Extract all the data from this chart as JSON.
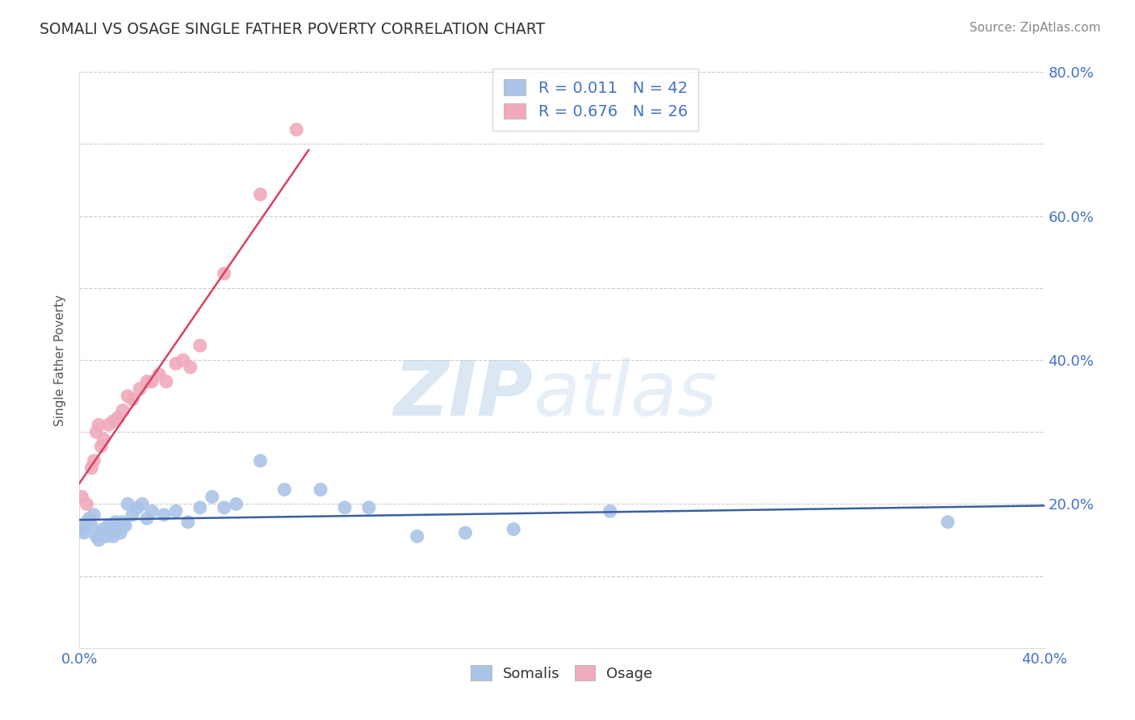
{
  "title": "SOMALI VS OSAGE SINGLE FATHER POVERTY CORRELATION CHART",
  "source_text": "Source: ZipAtlas.com",
  "ylabel": "Single Father Poverty",
  "watermark_zip": "ZIP",
  "watermark_atlas": "atlas",
  "xlim": [
    0.0,
    0.4
  ],
  "ylim": [
    0.0,
    0.8
  ],
  "somalis_color": "#aac4e8",
  "osage_color": "#f0aabb",
  "somalis_line_color": "#3a5fa0",
  "osage_line_color": "#d94060",
  "somalis_R": 0.011,
  "somalis_N": 42,
  "osage_R": 0.676,
  "osage_N": 26,
  "somalis_x": [
    0.001,
    0.002,
    0.003,
    0.004,
    0.005,
    0.006,
    0.007,
    0.008,
    0.009,
    0.01,
    0.011,
    0.012,
    0.013,
    0.014,
    0.015,
    0.016,
    0.017,
    0.018,
    0.019,
    0.02,
    0.022,
    0.024,
    0.026,
    0.028,
    0.03,
    0.035,
    0.04,
    0.045,
    0.05,
    0.055,
    0.06,
    0.065,
    0.075,
    0.085,
    0.1,
    0.11,
    0.12,
    0.14,
    0.16,
    0.18,
    0.22,
    0.36
  ],
  "somalis_y": [
    0.165,
    0.16,
    0.175,
    0.18,
    0.17,
    0.185,
    0.155,
    0.15,
    0.16,
    0.165,
    0.155,
    0.17,
    0.16,
    0.155,
    0.175,
    0.165,
    0.16,
    0.175,
    0.17,
    0.2,
    0.185,
    0.195,
    0.2,
    0.18,
    0.19,
    0.185,
    0.19,
    0.175,
    0.195,
    0.21,
    0.195,
    0.2,
    0.26,
    0.22,
    0.22,
    0.195,
    0.195,
    0.155,
    0.16,
    0.165,
    0.19,
    0.175
  ],
  "osage_x": [
    0.001,
    0.003,
    0.005,
    0.006,
    0.007,
    0.008,
    0.009,
    0.01,
    0.012,
    0.014,
    0.016,
    0.018,
    0.02,
    0.022,
    0.025,
    0.028,
    0.03,
    0.033,
    0.036,
    0.04,
    0.043,
    0.046,
    0.05,
    0.06,
    0.075,
    0.09
  ],
  "osage_y": [
    0.21,
    0.2,
    0.25,
    0.26,
    0.3,
    0.31,
    0.28,
    0.29,
    0.31,
    0.315,
    0.32,
    0.33,
    0.35,
    0.345,
    0.36,
    0.37,
    0.37,
    0.38,
    0.37,
    0.395,
    0.4,
    0.39,
    0.42,
    0.52,
    0.63,
    0.72
  ],
  "background_color": "#ffffff",
  "grid_color": "#cccccc",
  "title_color": "#333333",
  "axis_label_color": "#555555",
  "tick_label_color": "#4472c4",
  "right_ytick_color": "#4472c4"
}
